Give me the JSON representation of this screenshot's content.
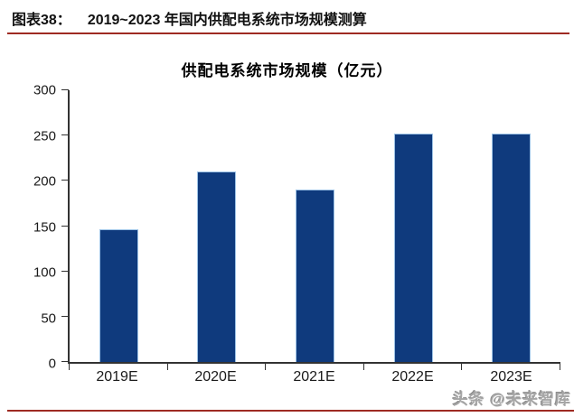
{
  "header": {
    "label": "图表38：",
    "title": "2019~2023 年国内供配电系统市场规模测算"
  },
  "chart_data": {
    "type": "bar",
    "title": "供配电系统市场规模（亿元）",
    "categories": [
      "2019E",
      "2020E",
      "2021E",
      "2022E",
      "2023E"
    ],
    "values": [
      147,
      210,
      190,
      252,
      252
    ],
    "xlabel": "",
    "ylabel": "",
    "ylim": [
      0,
      300
    ],
    "yticks": [
      0,
      50,
      100,
      150,
      200,
      250,
      300
    ],
    "grid": false,
    "legend": false,
    "bar_color": "#0f3a7d"
  },
  "watermark": {
    "text": "头条 @未来智库"
  },
  "colors": {
    "accent_red": "#9e2a22",
    "bar_fill": "#0f3a7d",
    "bar_edge": "#9dc3e6",
    "axis": "#333333"
  }
}
